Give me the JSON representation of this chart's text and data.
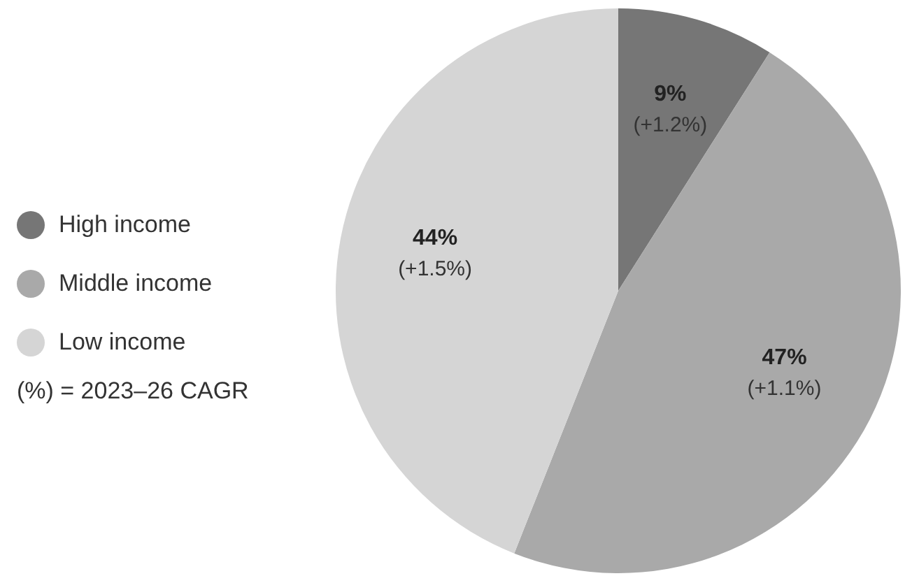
{
  "chart_data": {
    "type": "pie",
    "categories": [
      "High income",
      "Middle income",
      "Low income"
    ],
    "values": [
      9,
      47,
      44
    ],
    "colors": [
      "#767676",
      "#a9a9a9",
      "#d5d5d5"
    ],
    "value_labels": [
      "9%",
      "47%",
      "44%"
    ],
    "legend": "left",
    "annotations": [
      {
        "text": "(+1.2%)",
        "x": "High income"
      },
      {
        "text": "(+1.1%)",
        "x": "Middle income"
      },
      {
        "text": "(+1.5%)",
        "x": "Low income"
      },
      "(%) = 2023–26 CAGR"
    ]
  }
}
